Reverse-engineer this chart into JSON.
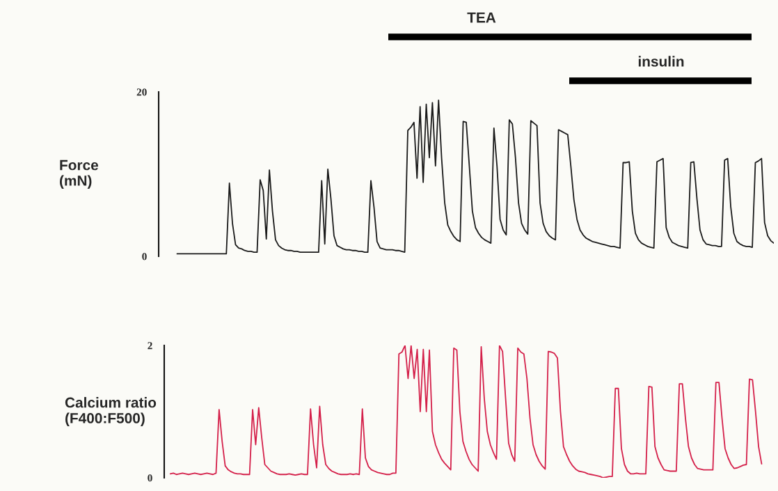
{
  "chart_data": [
    {
      "type": "line",
      "ylabel": "Force\n(mN)",
      "ylim": [
        0,
        20
      ],
      "yticks": [
        0,
        20
      ],
      "tick_labels": "y",
      "grid": false,
      "categories": [
        null,
        null,
        null,
        null,
        null,
        null,
        null,
        null,
        null,
        null,
        null,
        null,
        null,
        null,
        null,
        null,
        null,
        null,
        null,
        null,
        null,
        null,
        null,
        null,
        null,
        null,
        null,
        null,
        null,
        null,
        null,
        null,
        null,
        null,
        null,
        null,
        null,
        null,
        null,
        null,
        null,
        null,
        null,
        null,
        null,
        null,
        null,
        null,
        null,
        null,
        null,
        null,
        null,
        null,
        null,
        null,
        null,
        null,
        null,
        null,
        null,
        null,
        null,
        null,
        null,
        null,
        null,
        null,
        null,
        null,
        null,
        null,
        null,
        null,
        null,
        null,
        null,
        null,
        null,
        null,
        null,
        null,
        null,
        null,
        null,
        null,
        null,
        null,
        null,
        null,
        null,
        null,
        null,
        null,
        null,
        null,
        null,
        null,
        null,
        null,
        null,
        null,
        null,
        null,
        null,
        null,
        null,
        null,
        null,
        null,
        null,
        null,
        null,
        null,
        null,
        null,
        null,
        null,
        null,
        null,
        null,
        null,
        null,
        null,
        null,
        null,
        null,
        null,
        null,
        null,
        null,
        null,
        null,
        null,
        null,
        null,
        null,
        null,
        null,
        null,
        null,
        null,
        null,
        null,
        null,
        null,
        null,
        null,
        null,
        null,
        null,
        null,
        null,
        null,
        null,
        null,
        null,
        null,
        null,
        null,
        null,
        null,
        null,
        null,
        null,
        null,
        null,
        null,
        null,
        null,
        null,
        null,
        null,
        null,
        null,
        null,
        null,
        null,
        null,
        null,
        null,
        null,
        null,
        null,
        null,
        null,
        null,
        null,
        null,
        null,
        null,
        null,
        null,
        null,
        null,
        null,
        null,
        null,
        null,
        null,
        null
      ],
      "annotations": [
        "TEA",
        "insulin"
      ],
      "series": [
        {
          "color": "#1a1a1a",
          "values": [
            null,
            null,
            null,
            null,
            null,
            null,
            0.3,
            0.3,
            0.3,
            0.3,
            0.3,
            0.3,
            0.3,
            0.3,
            0.3,
            0.3,
            0.3,
            0.3,
            0.3,
            0.3,
            0.3,
            0.3,
            0.3,
            8.9,
            4.0,
            1.4,
            1.0,
            0.9,
            0.7,
            0.6,
            0.6,
            0.5,
            0.5,
            9.3,
            8.0,
            2.1,
            10.5,
            5.5,
            2.0,
            1.3,
            1.0,
            0.8,
            0.7,
            0.7,
            0.6,
            0.6,
            0.5,
            0.5,
            0.5,
            0.5,
            0.5,
            0.5,
            0.5,
            9.2,
            1.5,
            10.6,
            7.0,
            2.5,
            1.3,
            1.1,
            0.9,
            0.8,
            0.8,
            0.7,
            0.7,
            0.6,
            0.6,
            0.5,
            0.5,
            9.2,
            6.0,
            1.8,
            1.0,
            0.9,
            0.8,
            0.8,
            0.8,
            0.7,
            0.7,
            0.6,
            0.5,
            15.3,
            15.7,
            16.3,
            9.5,
            18.2,
            9.0,
            18.5,
            12.0,
            18.7,
            11.0,
            19.0,
            11.9,
            6.5,
            3.8,
            3.0,
            2.4,
            2.0,
            1.8,
            16.4,
            16.3,
            11.0,
            5.5,
            3.5,
            2.8,
            2.3,
            2.0,
            1.8,
            1.6,
            15.6,
            11.0,
            4.5,
            3.2,
            2.6,
            16.6,
            16.1,
            12.0,
            6.5,
            4.0,
            3.2,
            2.7,
            16.5,
            16.2,
            15.9,
            6.5,
            4.0,
            3.0,
            2.5,
            2.2,
            2.0,
            15.4,
            15.2,
            15.0,
            14.8,
            11.0,
            6.9,
            4.5,
            3.2,
            2.6,
            2.2,
            2.0,
            1.8,
            1.7,
            1.6,
            1.5,
            1.4,
            1.3,
            1.2,
            1.2,
            1.1,
            1.0,
            11.4,
            11.4,
            11.5,
            5.5,
            2.8,
            2.0,
            1.6,
            1.4,
            1.2,
            1.1,
            1.0,
            11.5,
            11.7,
            11.9,
            3.5,
            2.3,
            1.7,
            1.5,
            1.3,
            1.2,
            1.1,
            1.0,
            11.4,
            11.5,
            7.0,
            3.2,
            2.0,
            1.5,
            1.4,
            1.3,
            1.3,
            1.2,
            1.2,
            11.7,
            11.9,
            6.0,
            2.8,
            1.8,
            1.5,
            1.3,
            1.2,
            1.2,
            1.1,
            11.4,
            11.6,
            11.9,
            4.1,
            2.5,
            1.9,
            1.6
          ]
        }
      ]
    },
    {
      "type": "line",
      "ylabel": "Calcium ratio\n(F400:F500)",
      "ylim": [
        0,
        2
      ],
      "yticks": [
        0,
        2
      ],
      "tick_labels": "y",
      "grid": false,
      "categories": [
        null,
        null,
        null,
        null,
        null,
        null,
        null,
        null,
        null,
        null,
        null,
        null,
        null,
        null,
        null,
        null,
        null,
        null,
        null,
        null,
        null,
        null,
        null,
        null,
        null,
        null,
        null,
        null,
        null,
        null,
        null,
        null,
        null,
        null,
        null,
        null,
        null,
        null,
        null,
        null,
        null,
        null,
        null,
        null,
        null,
        null,
        null,
        null,
        null,
        null,
        null,
        null,
        null,
        null,
        null,
        null,
        null,
        null,
        null,
        null,
        null,
        null,
        null,
        null,
        null,
        null,
        null,
        null,
        null,
        null,
        null,
        null,
        null,
        null,
        null,
        null,
        null,
        null,
        null,
        null,
        null,
        null,
        null,
        null,
        null,
        null,
        null,
        null,
        null,
        null,
        null,
        null,
        null,
        null,
        null,
        null,
        null,
        null,
        null,
        null,
        null,
        null,
        null,
        null,
        null,
        null,
        null,
        null,
        null,
        null,
        null,
        null,
        null,
        null,
        null,
        null,
        null,
        null,
        null,
        null,
        null,
        null,
        null,
        null,
        null,
        null,
        null,
        null,
        null,
        null,
        null,
        null,
        null,
        null,
        null,
        null,
        null,
        null,
        null,
        null,
        null,
        null,
        null,
        null,
        null,
        null,
        null,
        null,
        null,
        null,
        null,
        null,
        null,
        null,
        null,
        null,
        null,
        null,
        null,
        null,
        null,
        null,
        null,
        null,
        null,
        null,
        null,
        null,
        null,
        null,
        null,
        null,
        null,
        null,
        null,
        null,
        null,
        null,
        null,
        null,
        null,
        null,
        null,
        null,
        null,
        null,
        null,
        null,
        null,
        null,
        null,
        null,
        null,
        null,
        null,
        null,
        null,
        null,
        null,
        null,
        null
      ],
      "series": [
        {
          "color": "#d4204a",
          "values": [
            null,
            null,
            0.06,
            0.07,
            0.05,
            0.06,
            0.07,
            0.06,
            0.05,
            0.06,
            0.07,
            0.06,
            0.05,
            0.06,
            0.07,
            0.06,
            0.05,
            0.07,
            1.03,
            0.55,
            0.18,
            0.12,
            0.09,
            0.07,
            0.06,
            0.06,
            0.05,
            0.05,
            0.05,
            1.03,
            0.5,
            1.06,
            0.6,
            0.2,
            0.15,
            0.1,
            0.08,
            0.06,
            0.05,
            0.05,
            0.05,
            0.06,
            0.05,
            0.04,
            0.05,
            0.06,
            0.05,
            0.05,
            1.04,
            0.5,
            0.15,
            1.08,
            0.5,
            0.2,
            0.14,
            0.1,
            0.08,
            0.06,
            0.05,
            0.05,
            0.05,
            0.06,
            0.05,
            0.06,
            0.05,
            1.04,
            0.3,
            0.17,
            0.12,
            0.1,
            0.08,
            0.07,
            0.06,
            0.05,
            0.05,
            0.07,
            0.07,
            1.87,
            1.9,
            2.0,
            1.5,
            2.0,
            1.5,
            1.94,
            1.0,
            1.94,
            1.0,
            1.93,
            0.7,
            0.5,
            0.38,
            0.28,
            0.22,
            0.17,
            0.12,
            1.96,
            1.93,
            1.0,
            0.55,
            0.4,
            0.28,
            0.2,
            0.15,
            0.1,
            1.98,
            1.2,
            0.7,
            0.5,
            0.38,
            0.28,
            2.0,
            1.91,
            1.2,
            0.52,
            0.35,
            0.25,
            1.96,
            1.9,
            1.87,
            1.5,
            0.9,
            0.5,
            0.35,
            0.25,
            0.18,
            0.13,
            1.91,
            1.9,
            1.88,
            1.81,
            1.0,
            0.47,
            0.35,
            0.25,
            0.18,
            0.13,
            0.1,
            0.09,
            0.08,
            0.06,
            0.05,
            0.04,
            0.03,
            0.02,
            0.0,
            0.01,
            0.02,
            0.02,
            1.35,
            1.35,
            0.44,
            0.2,
            0.1,
            0.06,
            0.06,
            0.07,
            0.06,
            0.06,
            0.06,
            1.38,
            1.37,
            0.47,
            0.3,
            0.2,
            0.12,
            0.11,
            0.1,
            0.1,
            0.1,
            1.42,
            1.42,
            0.9,
            0.47,
            0.3,
            0.2,
            0.14,
            0.13,
            0.12,
            0.12,
            0.12,
            0.12,
            1.44,
            1.44,
            0.9,
            0.44,
            0.3,
            0.2,
            0.14,
            0.15,
            0.17,
            0.19,
            0.2,
            1.49,
            1.48,
            1.0,
            0.47,
            0.21,
            null,
            null,
            null,
            null
          ]
        }
      ]
    }
  ]
}
